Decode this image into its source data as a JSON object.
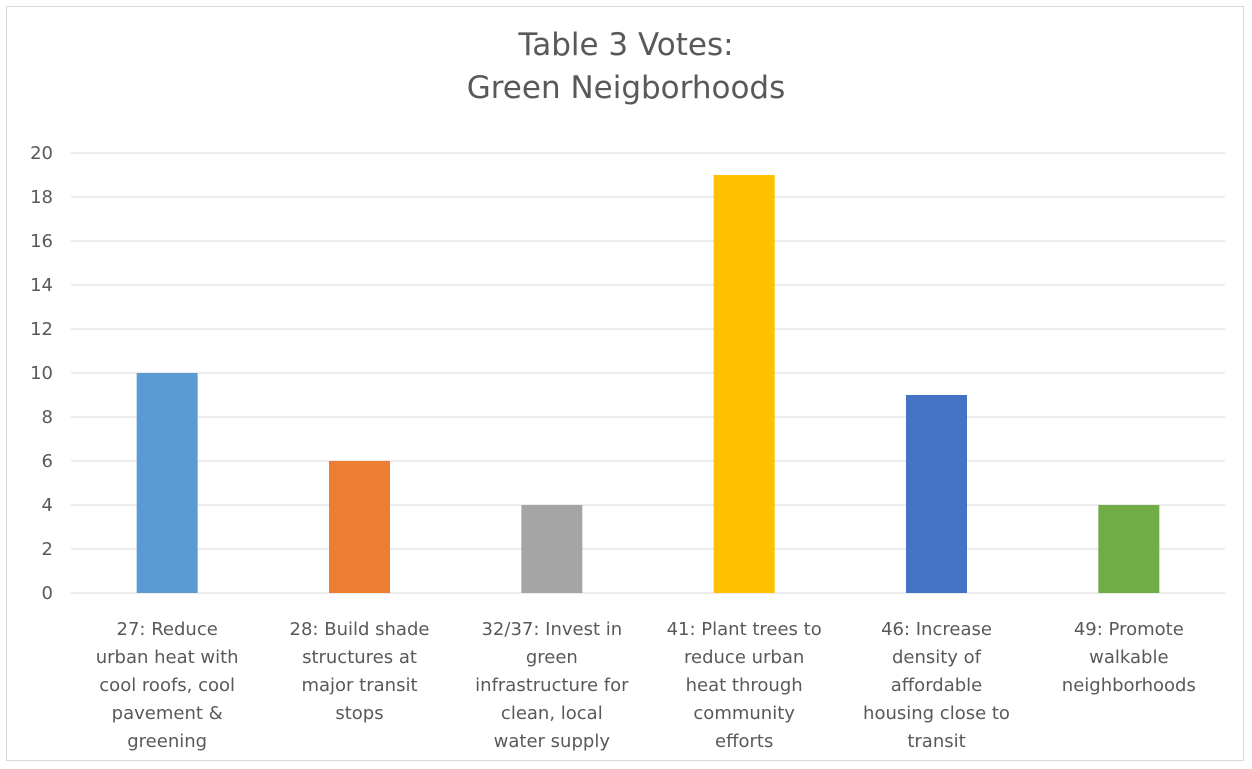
{
  "chart_data": {
    "type": "bar",
    "title_lines": [
      "Table 3 Votes:",
      "Green Neigborhoods"
    ],
    "categories": [
      "27: Reduce urban heat with cool roofs, cool pavement & greening",
      "28: Build shade structures at major transit stops",
      "32/37: Invest in green infrastructure for clean, local water supply",
      "41: Plant trees to reduce urban heat through community efforts",
      "46: Increase density of affordable housing close to transit",
      "49: Promote walkable neighborhoods"
    ],
    "category_label_lines": [
      [
        "27: Reduce",
        "urban heat with",
        "cool roofs, cool",
        "pavement &",
        "greening"
      ],
      [
        "28: Build shade",
        "structures at",
        "major transit",
        "stops"
      ],
      [
        "32/37: Invest in",
        "green",
        "infrastructure for",
        "clean, local",
        "water supply"
      ],
      [
        "41: Plant trees to",
        "reduce urban",
        "heat through",
        "community",
        "efforts"
      ],
      [
        "46: Increase",
        "density of",
        "affordable",
        "housing close to",
        "transit"
      ],
      [
        "49: Promote",
        "walkable",
        "neighborhoods"
      ]
    ],
    "values": [
      10,
      6,
      4,
      19,
      9,
      4
    ],
    "colors": [
      "#5b9bd5",
      "#ed7d31",
      "#a5a5a5",
      "#ffc000",
      "#4472c4",
      "#70ad47"
    ],
    "ylim": [
      0,
      20
    ],
    "yticks": [
      0,
      2,
      4,
      6,
      8,
      10,
      12,
      14,
      16,
      18,
      20
    ],
    "grid": true,
    "legend": "none",
    "xlabel": "",
    "ylabel": ""
  }
}
